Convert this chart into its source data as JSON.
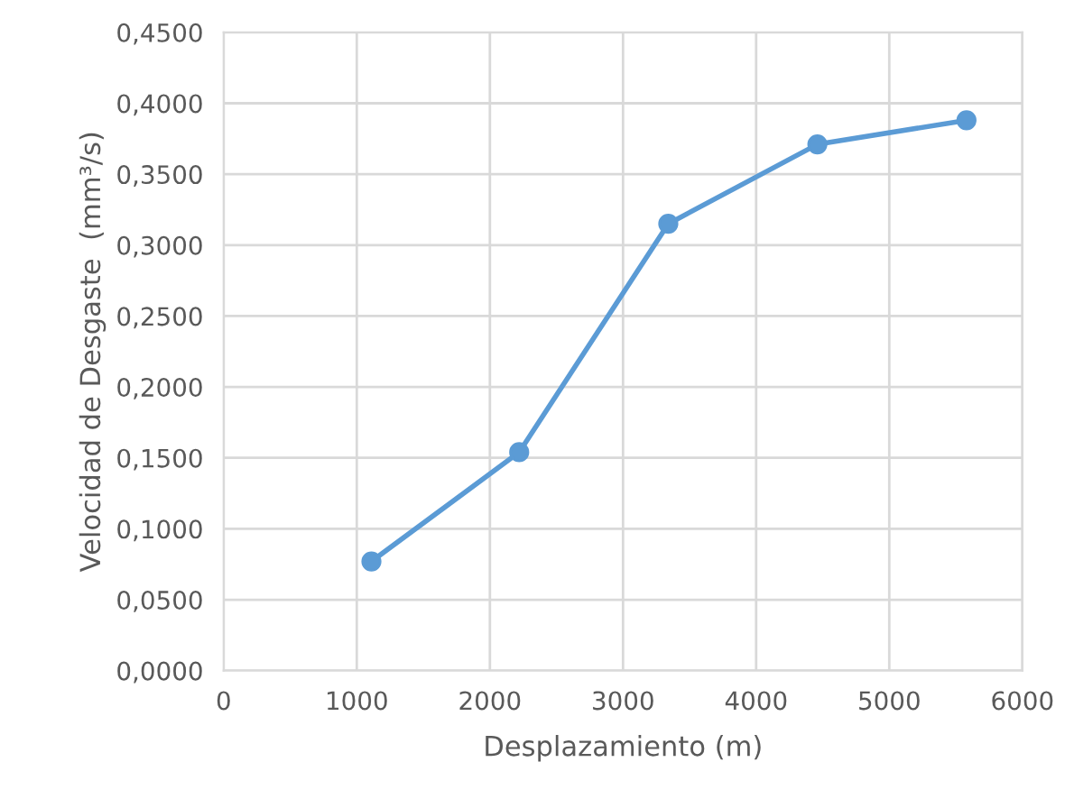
{
  "chart_data": {
    "type": "line",
    "xlabel": "Desplazamiento (m)",
    "ylabel": "Velocidad de Desgaste  (mm³/s)",
    "x": [
      1110,
      2220,
      3340,
      4460,
      5580
    ],
    "series": [
      {
        "color": "#5b9bd5",
        "values": [
          0.077,
          0.154,
          0.315,
          0.371,
          0.388
        ]
      }
    ],
    "xlim": [
      0,
      6000
    ],
    "xticks": [
      0,
      1000,
      2000,
      3000,
      4000,
      5000,
      6000
    ],
    "ylim": [
      0,
      0.45
    ],
    "yticks": [
      {
        "value": 0,
        "label": "0,0000"
      },
      {
        "value": 0.05,
        "label": "0,0500"
      },
      {
        "value": 0.1,
        "label": "0,1000"
      },
      {
        "value": 0.15,
        "label": "0,1500"
      },
      {
        "value": 0.2,
        "label": "0,2000"
      },
      {
        "value": 0.25,
        "label": "0,2500"
      },
      {
        "value": 0.3,
        "label": "0,3000"
      },
      {
        "value": 0.35,
        "label": "0,3500"
      },
      {
        "value": 0.4,
        "label": "0,4000"
      },
      {
        "value": 0.45,
        "label": "0,4500"
      }
    ],
    "grid": true,
    "marker": "circle",
    "line_style": "solid",
    "legend": false
  }
}
